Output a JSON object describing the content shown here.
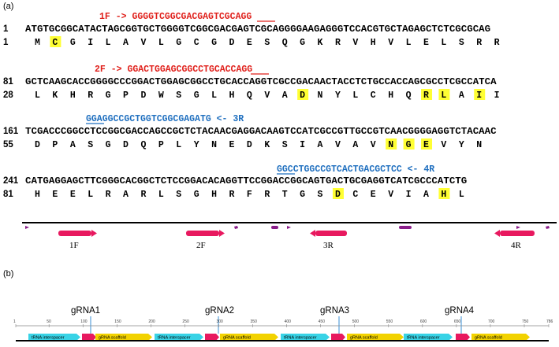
{
  "panels": {
    "a": "(a)",
    "b": "(b)"
  },
  "primers": {
    "f1": {
      "label": "1F",
      "arrow": "->",
      "seq": "GGGGTCGGCGACGAGTCGC",
      "pam": "AGG"
    },
    "f2": {
      "label": "2F",
      "arrow": "->",
      "seq": "GGACTGGAGCGGCCTGCACC",
      "pam": "AGG"
    },
    "r3": {
      "pam": "GGA",
      "seq": "GGCCGCTGGTCGGCGAGATG",
      "arrow": "<-",
      "label": "3R"
    },
    "r4": {
      "pam": "GGC",
      "seq": "CTGGCCGTCACTGACGCTCC",
      "arrow": "<-",
      "label": "4R"
    }
  },
  "blocks": [
    {
      "dna_num": "1",
      "dna": "ATGTGCGGCATACTAGCGGTGCTGGGGTCGGCGACGAGTCGCAGGGGAAGAGGGTCCACGTGCTAGAGCTCTCGCGCAG",
      "aa_num": "1",
      "aa": [
        "M",
        "C",
        "G",
        "I",
        "L",
        "A",
        "V",
        "L",
        "G",
        "C",
        "G",
        "D",
        "E",
        "S",
        "Q",
        "G",
        "K",
        "R",
        "V",
        "H",
        "V",
        "L",
        "E",
        "L",
        "S",
        "R",
        "R"
      ],
      "highlight": [
        1
      ]
    },
    {
      "dna_num": "81",
      "dna": "GCTCAAGCACCGGGGCCCGGACTGGAGCGGCCTGCACCAGGTCGCCGACAACTACCTCTGCCACCAGCGCCTCGCCATCA",
      "aa_num": "28",
      "aa": [
        "L",
        "K",
        "H",
        "R",
        "G",
        "P",
        "D",
        "W",
        "S",
        "G",
        "L",
        "H",
        "Q",
        "V",
        "A",
        "D",
        "N",
        "Y",
        "L",
        "C",
        "H",
        "Q",
        "R",
        "L",
        "A",
        "I",
        "I"
      ],
      "highlight": [
        15,
        22,
        23,
        25
      ]
    },
    {
      "dna_num": "161",
      "dna": "TCGACCCGGCCTCCGGCGACCAGCCGCTCTACAACGAGGACAAGTCCATCGCCGTTGCCGTCAACGGGGAGGTCTACAAC",
      "aa_num": "55",
      "aa": [
        "D",
        "P",
        "A",
        "S",
        "G",
        "D",
        "Q",
        "P",
        "L",
        "Y",
        "N",
        "E",
        "D",
        "K",
        "S",
        "I",
        "A",
        "V",
        "A",
        "V",
        "N",
        "G",
        "E",
        "V",
        "Y",
        "N"
      ],
      "highlight": [
        20,
        21,
        22
      ]
    },
    {
      "dna_num": "241",
      "dna": "CATGAGGAGCTTCGGGCACGGCTCTCCGGACACAGGTTCCGGACCGGCAGTGACTGCGAGGTCATCGCCCATCTG",
      "aa_num": "81",
      "aa": [
        "H",
        "E",
        "E",
        "L",
        "R",
        "A",
        "R",
        "L",
        "S",
        "G",
        "H",
        "R",
        "F",
        "R",
        "T",
        "G",
        "S",
        "D",
        "C",
        "E",
        "V",
        "I",
        "A",
        "H",
        "L"
      ],
      "highlight": [
        17,
        23
      ]
    }
  ],
  "map_features": [
    {
      "type": "small-tick"
    },
    {
      "type": "arrow-right",
      "label": "1F"
    },
    {
      "type": "arrow-right",
      "label": "2F"
    },
    {
      "type": "dot"
    },
    {
      "type": "dot"
    },
    {
      "type": "small-tick"
    },
    {
      "type": "arrow-left",
      "label": "3R"
    },
    {
      "type": "dot"
    },
    {
      "type": "arrow-left",
      "label": "4R"
    }
  ],
  "grnas": [
    {
      "label": "gRNA1"
    },
    {
      "label": "gRNA2"
    },
    {
      "label": "gRNA3"
    },
    {
      "label": "gRNA4"
    }
  ],
  "ruler": [
    "1",
    "50",
    "100",
    "150",
    "200",
    "250",
    "300",
    "350",
    "400",
    "450",
    "500",
    "550",
    "600",
    "650",
    "700",
    "750",
    "786"
  ],
  "features_b": [
    "tRNA interspacer",
    "gRNA scaffold",
    "tRNA interspacer",
    "gRNA scaffold",
    "tRNA interspacer",
    "gRNA scaffold",
    "tRNA interspacer",
    "gRNA scaffold"
  ],
  "colors": {
    "red": "#e0201b",
    "blue": "#1f6fbf",
    "highlight": "#ffff33",
    "pink": "#e8195f",
    "purple": "#8a1d8a",
    "cyan": "#38d3e6",
    "yellow": "#f2d200"
  }
}
